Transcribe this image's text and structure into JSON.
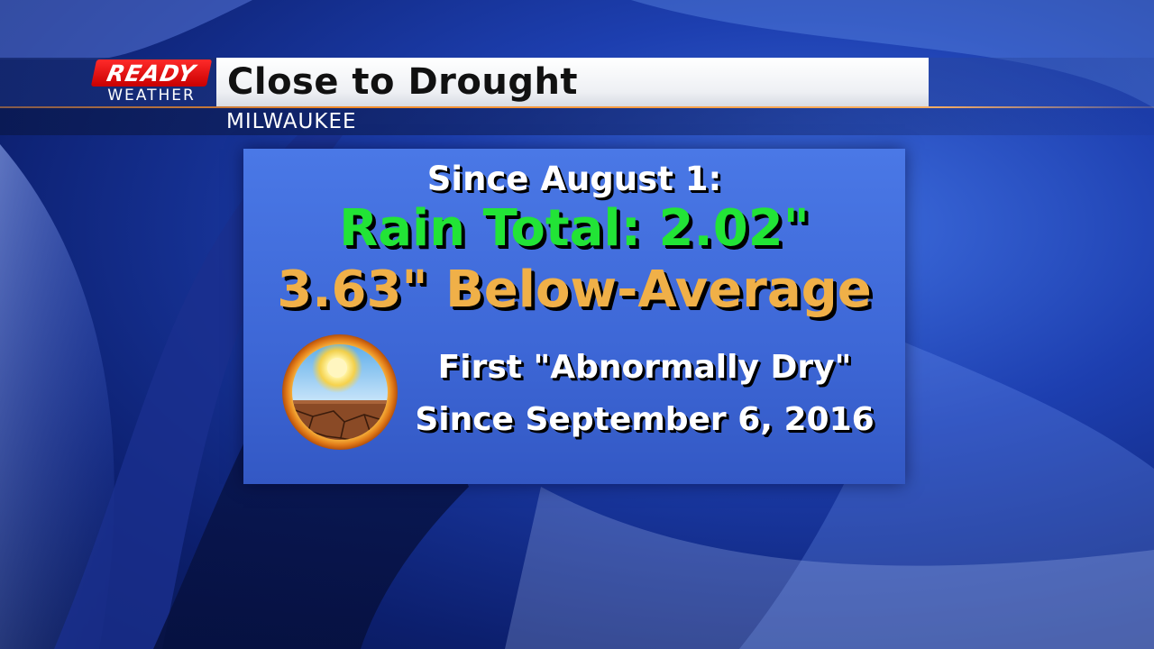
{
  "header": {
    "logo": {
      "top": "READY",
      "bottom": "WEATHER"
    },
    "title": "Close to Drought",
    "location": "MILWAUKEE"
  },
  "panel": {
    "line1": "Since August 1:",
    "line2": "Rain Total: 2.02\"",
    "line3": "3.63\" Below-Average",
    "line4": "First \"Abnormally Dry\"",
    "line5": "Since September 6, 2016",
    "icon": "abnormally-dry-icon"
  },
  "colors": {
    "rain_total": "#22e436",
    "below_average": "#f0b048",
    "logo_red": "#e01010",
    "panel_blue": "#3d67d6",
    "accent_line": "#f08a28"
  }
}
